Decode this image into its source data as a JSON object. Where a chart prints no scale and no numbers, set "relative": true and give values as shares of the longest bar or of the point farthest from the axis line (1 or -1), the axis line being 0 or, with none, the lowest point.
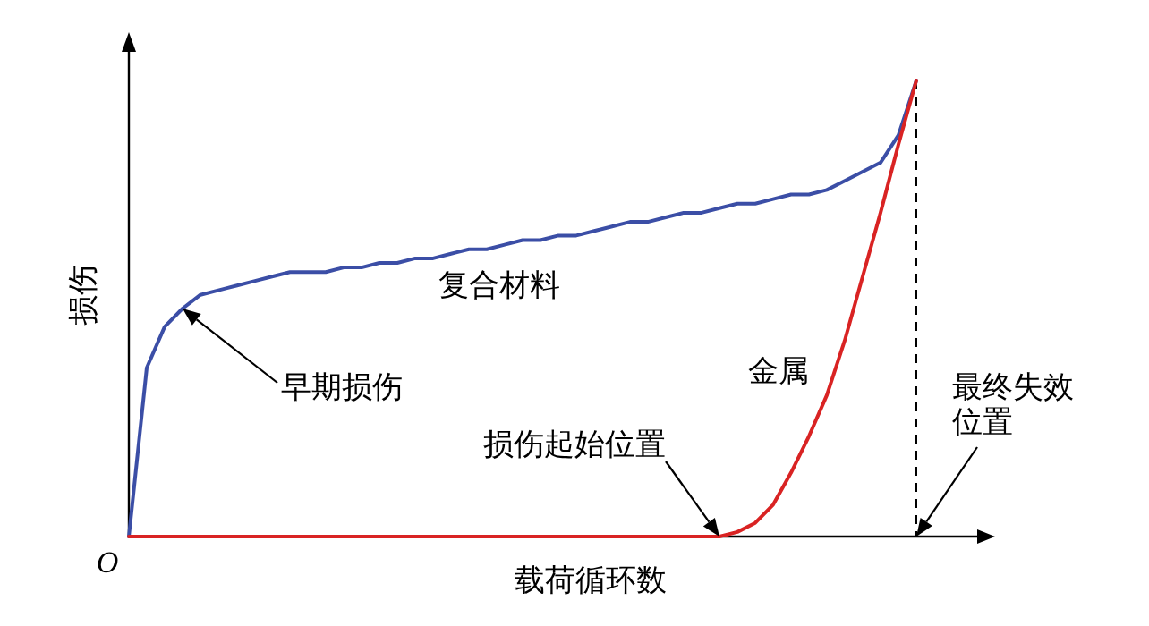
{
  "chart_data": {
    "type": "line",
    "relative": true,
    "xlabel": "载荷循环数",
    "ylabel": "损伤",
    "marker": "none",
    "line_style": "solid",
    "categories": [
      null,
      null,
      null,
      null,
      null,
      null,
      null,
      null,
      null,
      null,
      null,
      null,
      null,
      null,
      null,
      null,
      null,
      null,
      null,
      null,
      null,
      null,
      null,
      null,
      null,
      null,
      null,
      null,
      null,
      null,
      null,
      null,
      null,
      null,
      null,
      null,
      null,
      null,
      null,
      null,
      null,
      null,
      null,
      null,
      null
    ],
    "series": [
      {
        "name": "复合材料",
        "color": "#3b4ea6",
        "values": [
          0,
          0.37,
          0.46,
          0.5,
          0.53,
          0.54,
          0.55,
          0.56,
          0.57,
          0.58,
          0.58,
          0.58,
          0.59,
          0.59,
          0.6,
          0.6,
          0.61,
          0.61,
          0.62,
          0.63,
          0.63,
          0.64,
          0.65,
          0.65,
          0.66,
          0.66,
          0.67,
          0.68,
          0.69,
          0.69,
          0.7,
          0.71,
          0.71,
          0.72,
          0.73,
          0.73,
          0.74,
          0.75,
          0.75,
          0.76,
          0.78,
          0.8,
          0.82,
          0.88,
          1
        ]
      },
      {
        "name": "金属",
        "color": "#d92323",
        "values": [
          0,
          0,
          0,
          0,
          0,
          0,
          0,
          0,
          0,
          0,
          0,
          0,
          0,
          0,
          0,
          0,
          0,
          0,
          0,
          0,
          0,
          0,
          0,
          0,
          0,
          0,
          0,
          0,
          0,
          0,
          0,
          0,
          0,
          0,
          0.01,
          0.03,
          0.07,
          0.14,
          0.22,
          0.31,
          0.43,
          0.57,
          0.71,
          0.86,
          1
        ]
      }
    ],
    "annotations": [
      "O",
      "早期损伤",
      "损伤起始位置",
      "最终失效位置"
    ]
  }
}
